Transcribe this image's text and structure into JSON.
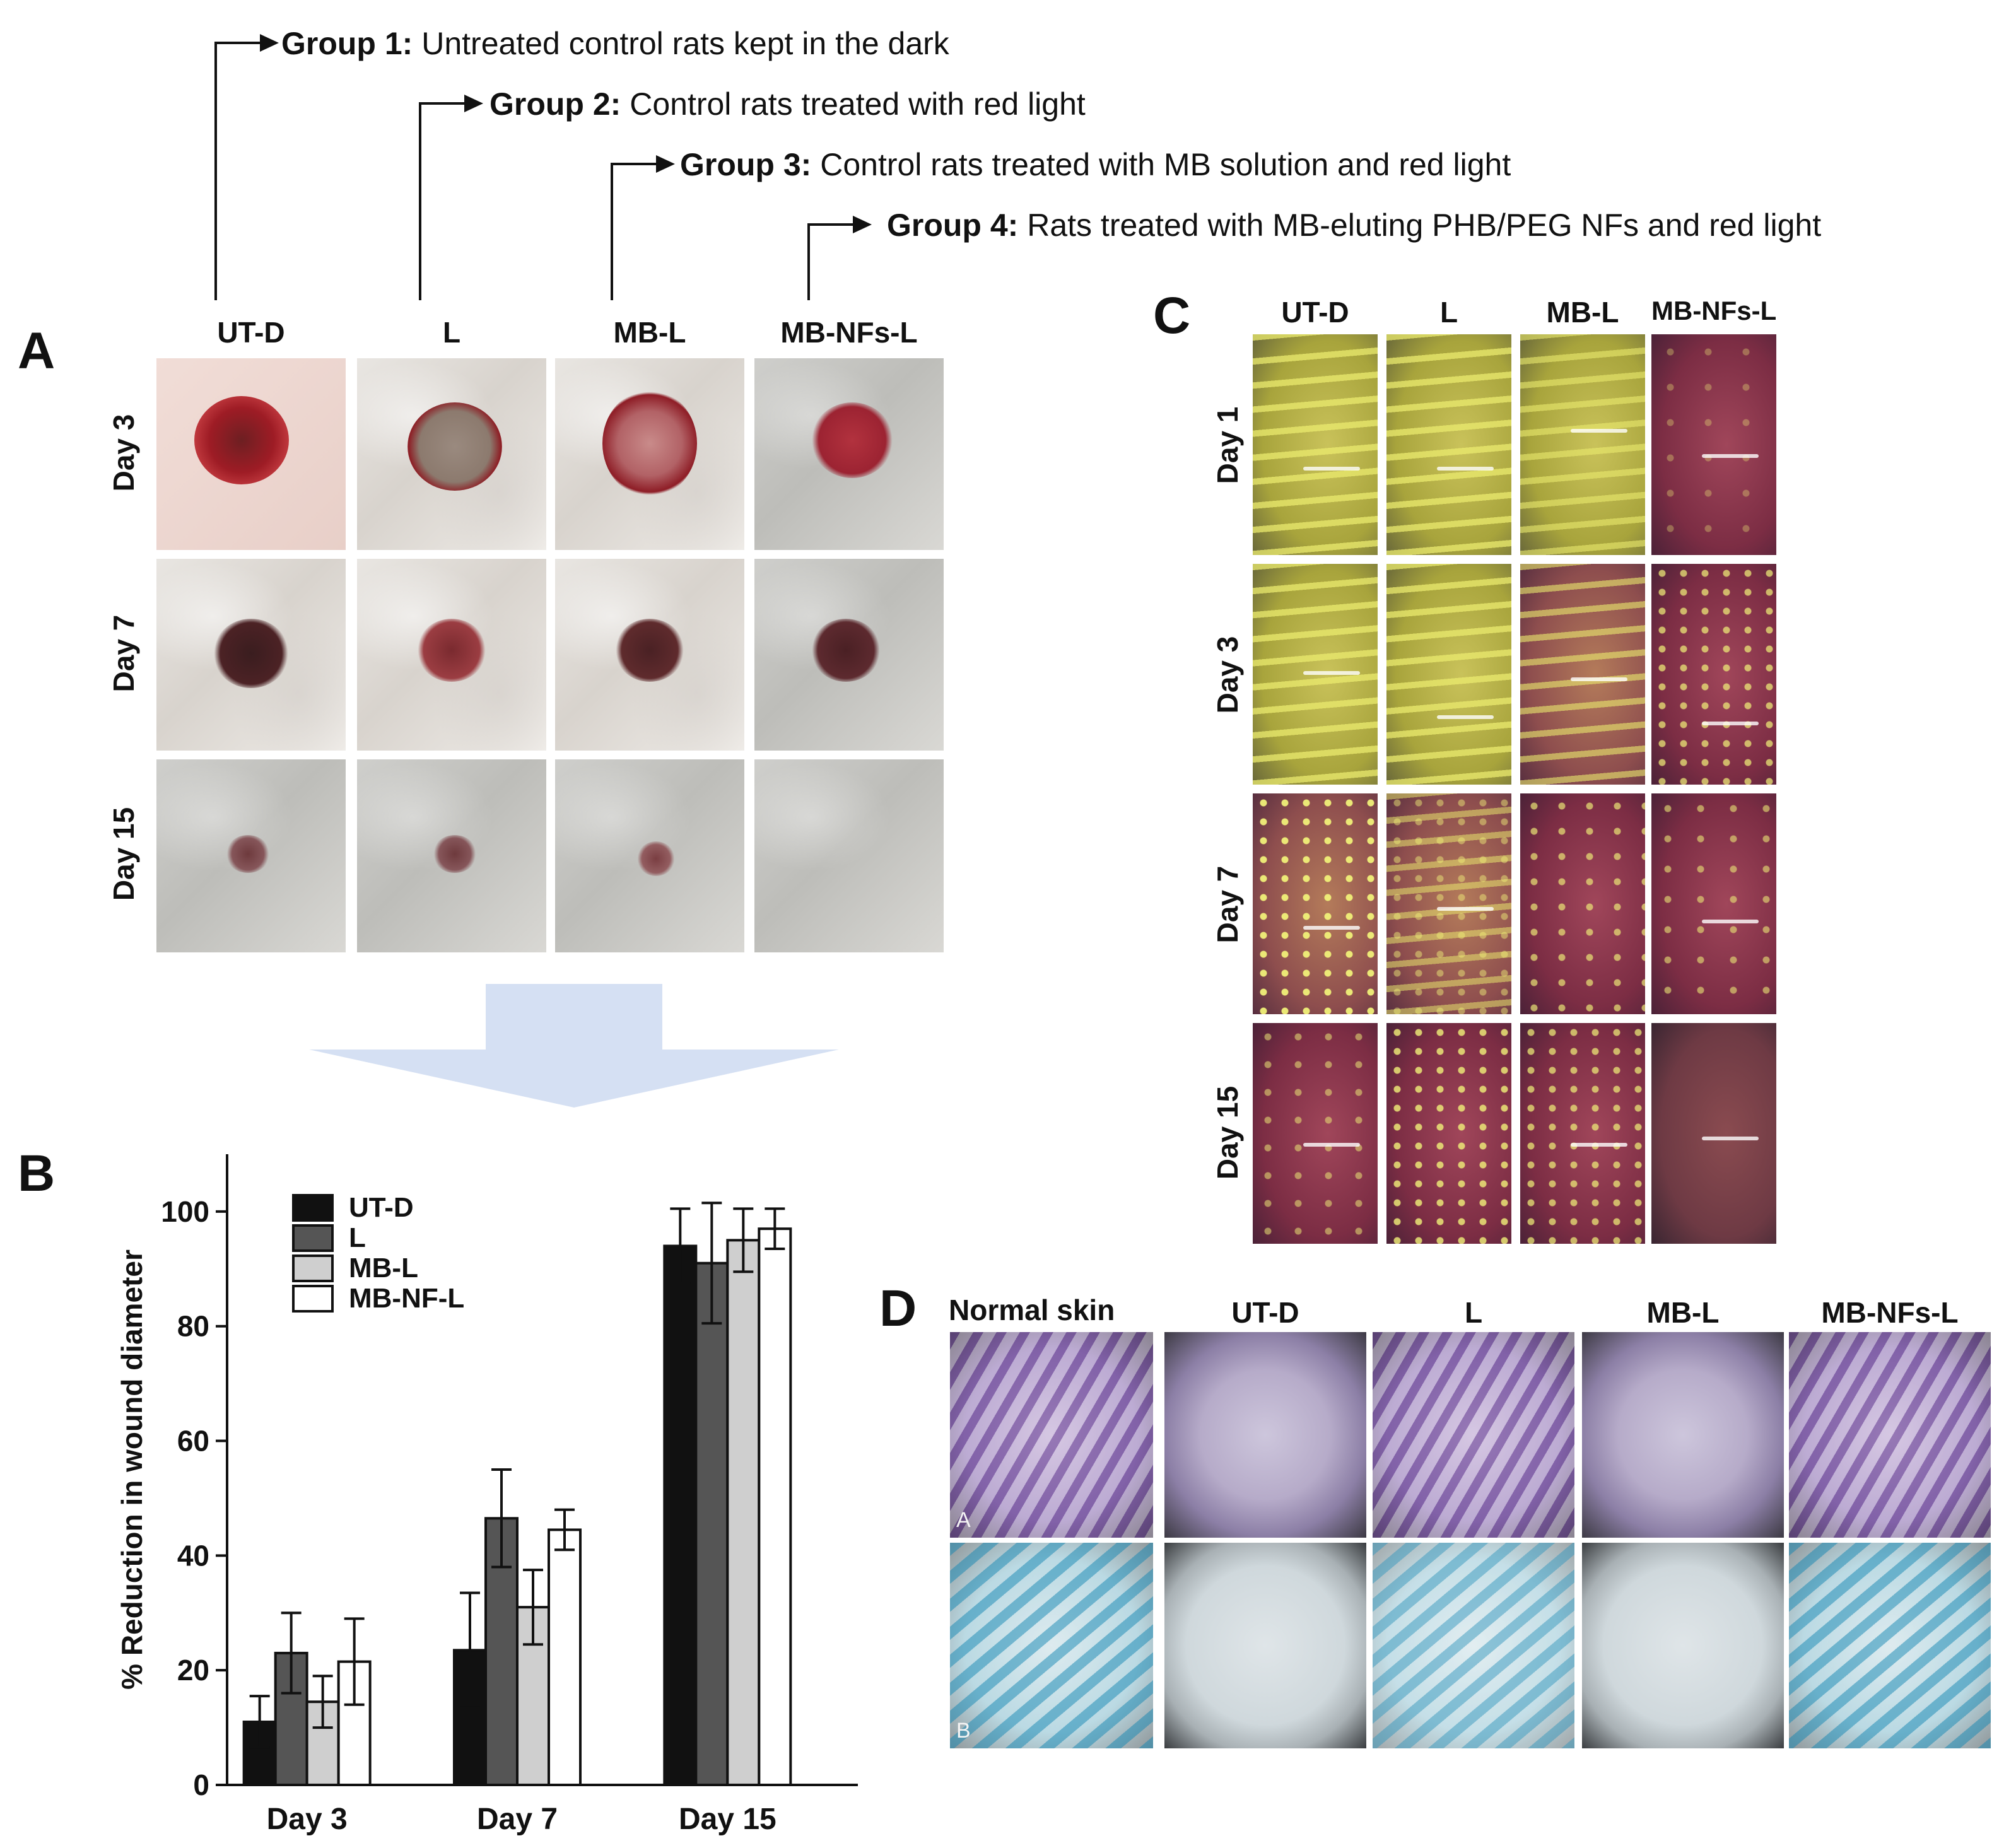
{
  "groups": [
    {
      "label": "Group 1:",
      "desc": "Untreated control rats kept in the dark"
    },
    {
      "label": "Group 2:",
      "desc": "Control rats treated with red light"
    },
    {
      "label": "Group 3:",
      "desc": "Control rats treated with MB solution and red light"
    },
    {
      "label": "Group 4:",
      "desc": "Rats treated with MB-eluting PHB/PEG NFs and red light"
    }
  ],
  "panel_a": {
    "letter": "A",
    "columns": [
      "UT-D",
      "L",
      "MB-L",
      "MB-NFs-L"
    ],
    "rows": [
      "Day 3",
      "Day 7",
      "Day 15"
    ]
  },
  "panel_c": {
    "letter": "C",
    "columns": [
      "UT-D",
      "L",
      "MB-L",
      "MB-NFs-L"
    ],
    "rows": [
      "Day 1",
      "Day 3",
      "Day 7",
      "Day 15"
    ]
  },
  "panel_d": {
    "letter": "D",
    "columns": [
      "Normal skin",
      "UT-D",
      "L",
      "MB-L",
      "MB-NFs-L"
    ],
    "row_marks": [
      "A",
      "B"
    ]
  },
  "panel_b": {
    "letter": "B"
  },
  "chart_data": {
    "type": "bar",
    "ylabel": "% Reduction in wound diameter",
    "xlabel": "",
    "ylim": [
      0,
      110
    ],
    "yticks": [
      0,
      20,
      40,
      60,
      80,
      100
    ],
    "categories": [
      "Day 3",
      "Day 7",
      "Day 15"
    ],
    "series": [
      {
        "name": "UT-D",
        "values": [
          11,
          23.5,
          94
        ],
        "errors": [
          4.5,
          10,
          6.5
        ],
        "color": "#111111"
      },
      {
        "name": "L",
        "values": [
          23,
          46.5,
          91
        ],
        "errors": [
          7,
          8.5,
          10.5
        ],
        "color": "#555555"
      },
      {
        "name": "MB-L",
        "values": [
          14.5,
          31,
          95
        ],
        "errors": [
          4.5,
          6.5,
          5.5
        ],
        "color": "#cfcfcf"
      },
      {
        "name": "MB-NF-L",
        "values": [
          21.5,
          44.5,
          97
        ],
        "errors": [
          7.5,
          3.5,
          3.5
        ],
        "color": "#ffffff"
      }
    ],
    "legend_position": "top-left",
    "grid": false
  }
}
